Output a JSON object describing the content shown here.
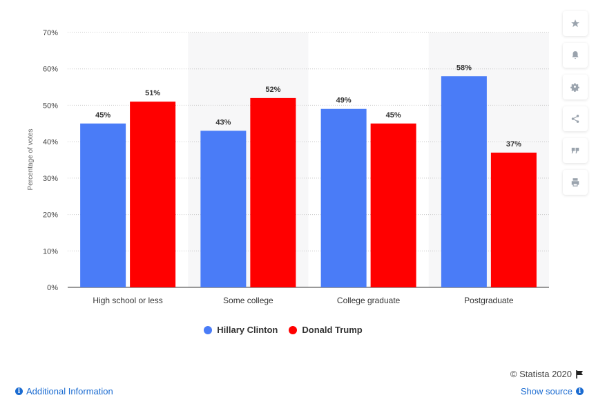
{
  "chart_data": {
    "type": "bar",
    "categories": [
      "High school or less",
      "Some college",
      "College graduate",
      "Postgraduate"
    ],
    "series": [
      {
        "name": "Hillary Clinton",
        "values": [
          45,
          43,
          49,
          58
        ],
        "color": "#4a7cf7"
      },
      {
        "name": "Donald Trump",
        "values": [
          51,
          52,
          45,
          37
        ],
        "color": "#ff0000"
      }
    ],
    "data_labels": [
      [
        "45%",
        "43%",
        "49%",
        "58%"
      ],
      [
        "51%",
        "52%",
        "45%",
        "37%"
      ]
    ],
    "yticks": [
      "0%",
      "10%",
      "20%",
      "30%",
      "40%",
      "50%",
      "60%",
      "70%"
    ],
    "ylim": [
      0,
      70
    ],
    "ylabel": "Percentage of votes",
    "xlabel": "",
    "grid": true,
    "legend_position": "bottom"
  },
  "toolbar": {
    "icons": [
      "star-icon",
      "bell-icon",
      "gear-icon",
      "share-icon",
      "quote-icon",
      "print-icon"
    ]
  },
  "footer": {
    "credit": "© Statista 2020",
    "additional_info": "Additional Information",
    "show_source": "Show source"
  }
}
